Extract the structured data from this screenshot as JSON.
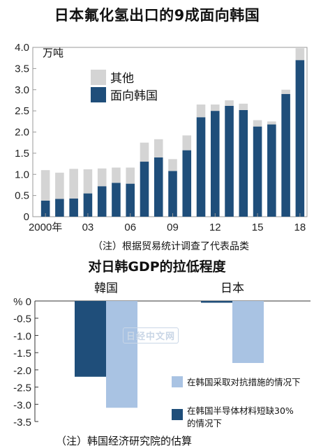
{
  "chart_data": [
    {
      "type": "bar",
      "stacked": true,
      "title": "日本氟化氢出口的9成面向韩国",
      "unit": "万吨",
      "categories": [
        "2000年",
        "01",
        "02",
        "03",
        "04",
        "05",
        "06",
        "07",
        "08",
        "09",
        "10",
        "11",
        "12",
        "13",
        "14",
        "15",
        "16",
        "17",
        "18"
      ],
      "tick_labels": [
        "2000年",
        "",
        "",
        "03",
        "",
        "",
        "06",
        "",
        "",
        "09",
        "",
        "",
        "12",
        "",
        "",
        "15",
        "",
        "",
        "18"
      ],
      "series": [
        {
          "name": "面向韩国",
          "color": "#1f4e7a",
          "values": [
            0.38,
            0.42,
            0.43,
            0.55,
            0.72,
            0.8,
            0.78,
            1.3,
            1.4,
            1.08,
            1.57,
            2.35,
            2.5,
            2.62,
            2.52,
            2.13,
            2.18,
            2.9,
            3.7
          ]
        },
        {
          "name": "其他",
          "color": "#d4d4d4",
          "values": [
            0.72,
            0.62,
            0.7,
            0.57,
            0.42,
            0.36,
            0.38,
            0.45,
            0.43,
            0.28,
            0.35,
            0.3,
            0.15,
            0.13,
            0.15,
            0.15,
            0.07,
            0.1,
            0.28
          ]
        }
      ],
      "ylim": [
        0,
        4.0
      ],
      "yticks": [
        0,
        0.5,
        1.0,
        1.5,
        2.0,
        2.5,
        3.0,
        3.5,
        4.0
      ],
      "ytick_labels": [
        "0",
        "0.5",
        "1.0",
        "1.5",
        "2.0",
        "2.5",
        "3.0",
        "3.5",
        "4.0"
      ],
      "legend": "top-left",
      "note": "（注）根据贸易统计调查了代表品类"
    },
    {
      "type": "bar",
      "title": "对日韩GDP的拉低程度",
      "unit": "%",
      "categories": [
        "韓国",
        "日本"
      ],
      "series": [
        {
          "name": "在韩国半导体材料短缺30%的情况下",
          "color": "#1f4e7a",
          "values": [
            -2.2,
            -0.05
          ]
        },
        {
          "name": "在韩国采取对抗措施的情况下",
          "color": "#a9c3e3",
          "values": [
            -3.1,
            -1.8
          ]
        }
      ],
      "ylim": [
        -3.5,
        0
      ],
      "yticks": [
        0,
        -0.5,
        -1.0,
        -1.5,
        -2.0,
        -2.5,
        -3.0,
        -3.5
      ],
      "ytick_labels": [
        "0",
        "-0.5",
        "-1.0",
        "-1.5",
        "-2.0",
        "-2.5",
        "-3.0",
        "-3.5"
      ],
      "legend": "bottom-right",
      "note": "（注）韩国经济研究院的估算"
    }
  ],
  "watermark": "日经中文网"
}
